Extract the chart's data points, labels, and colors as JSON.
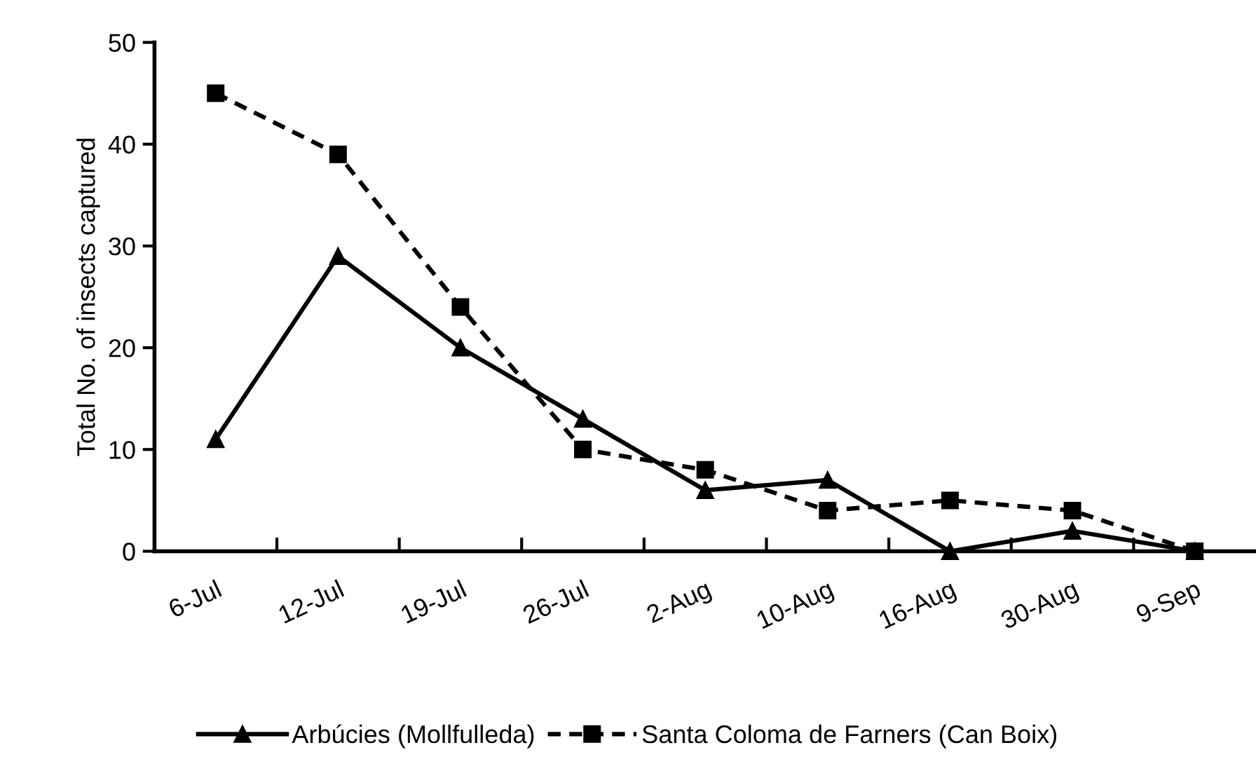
{
  "chart_data": {
    "type": "line",
    "ylabel": "Total No. of insects captured",
    "categories": [
      "6-Jul",
      "12-Jul",
      "19-Jul",
      "26-Jul",
      "2-Aug",
      "10-Aug",
      "16-Aug",
      "30-Aug",
      "9-Sep"
    ],
    "series": [
      {
        "name": "Arbúcies (Mollfulleda)",
        "color": "#000000",
        "marker": "triangle",
        "line_style": "solid",
        "values": [
          11,
          29,
          20,
          13,
          6,
          7,
          0,
          2,
          0
        ]
      },
      {
        "name": "Santa Coloma de Farners (Can Boix)",
        "color": "#000000",
        "marker": "square",
        "line_style": "dashed",
        "values": [
          45,
          39,
          24,
          10,
          8,
          4,
          5,
          4,
          0
        ]
      }
    ],
    "ylim": [
      0,
      50
    ],
    "yticks": [
      0,
      10,
      20,
      30,
      40,
      50
    ],
    "grid": false,
    "legend": "bottom"
  }
}
